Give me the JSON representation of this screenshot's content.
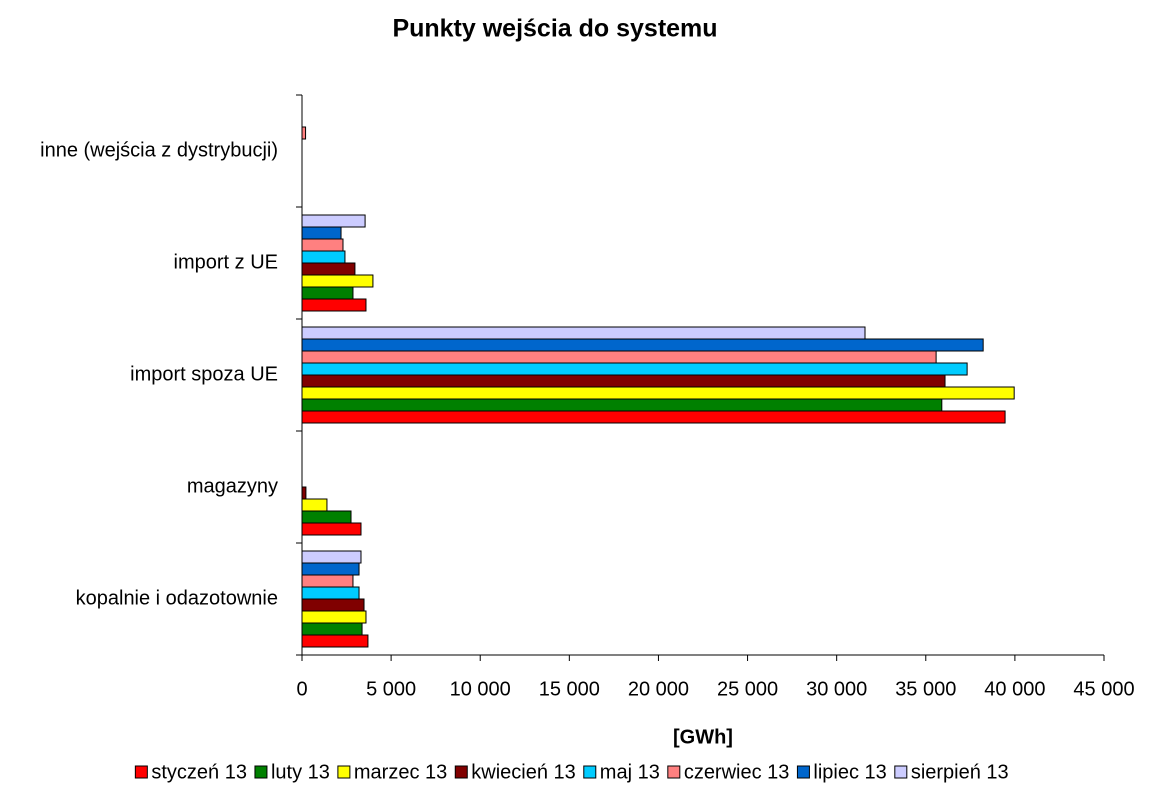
{
  "chart_data": {
    "type": "hbar",
    "title": "Punkty wejścia do systemu",
    "x_label": "[GWh]",
    "categories": [
      "kopalnie i odazotownie",
      "magazyny",
      "import spoza UE",
      "import z UE",
      "inne (wejścia z dystrybucji)"
    ],
    "series": [
      {
        "name": "styczeń 13",
        "color": "#ff0000",
        "values": [
          3700,
          3310,
          39450,
          3590,
          0
        ]
      },
      {
        "name": "luty 13",
        "color": "#008000",
        "values": [
          3370,
          2750,
          35900,
          2860,
          0
        ]
      },
      {
        "name": "marzec 13",
        "color": "#ffff00",
        "values": [
          3590,
          1400,
          39960,
          3980,
          0
        ]
      },
      {
        "name": "kwiecień 13",
        "color": "#800000",
        "values": [
          3480,
          220,
          36080,
          2970,
          0
        ]
      },
      {
        "name": "maj 13",
        "color": "#00ccff",
        "values": [
          3200,
          0,
          37320,
          2410,
          0
        ]
      },
      {
        "name": "czerwiec 13",
        "color": "#ff8080",
        "values": [
          2860,
          0,
          35580,
          2300,
          200
        ]
      },
      {
        "name": "lipiec 13",
        "color": "#0066cc",
        "values": [
          3200,
          0,
          38220,
          2190,
          0
        ]
      },
      {
        "name": "sierpień 13",
        "color": "#ccccff",
        "values": [
          3310,
          0,
          31590,
          3540,
          0
        ]
      }
    ],
    "xlim": [
      0,
      45000
    ],
    "xticks": [
      0,
      {
        "value": 5000,
        "label": "5 000"
      },
      {
        "value": 10000,
        "label": "10 000"
      },
      {
        "value": 15000,
        "label": "15 000"
      },
      {
        "value": 20000,
        "label": "20 000"
      },
      {
        "value": 25000,
        "label": "25 000"
      },
      {
        "value": 30000,
        "label": "30 000"
      },
      {
        "value": 35000,
        "label": "35 000"
      },
      {
        "value": 40000,
        "label": "40 000"
      },
      {
        "value": 45000,
        "label": "45 000"
      }
    ],
    "legend": "bottom"
  }
}
